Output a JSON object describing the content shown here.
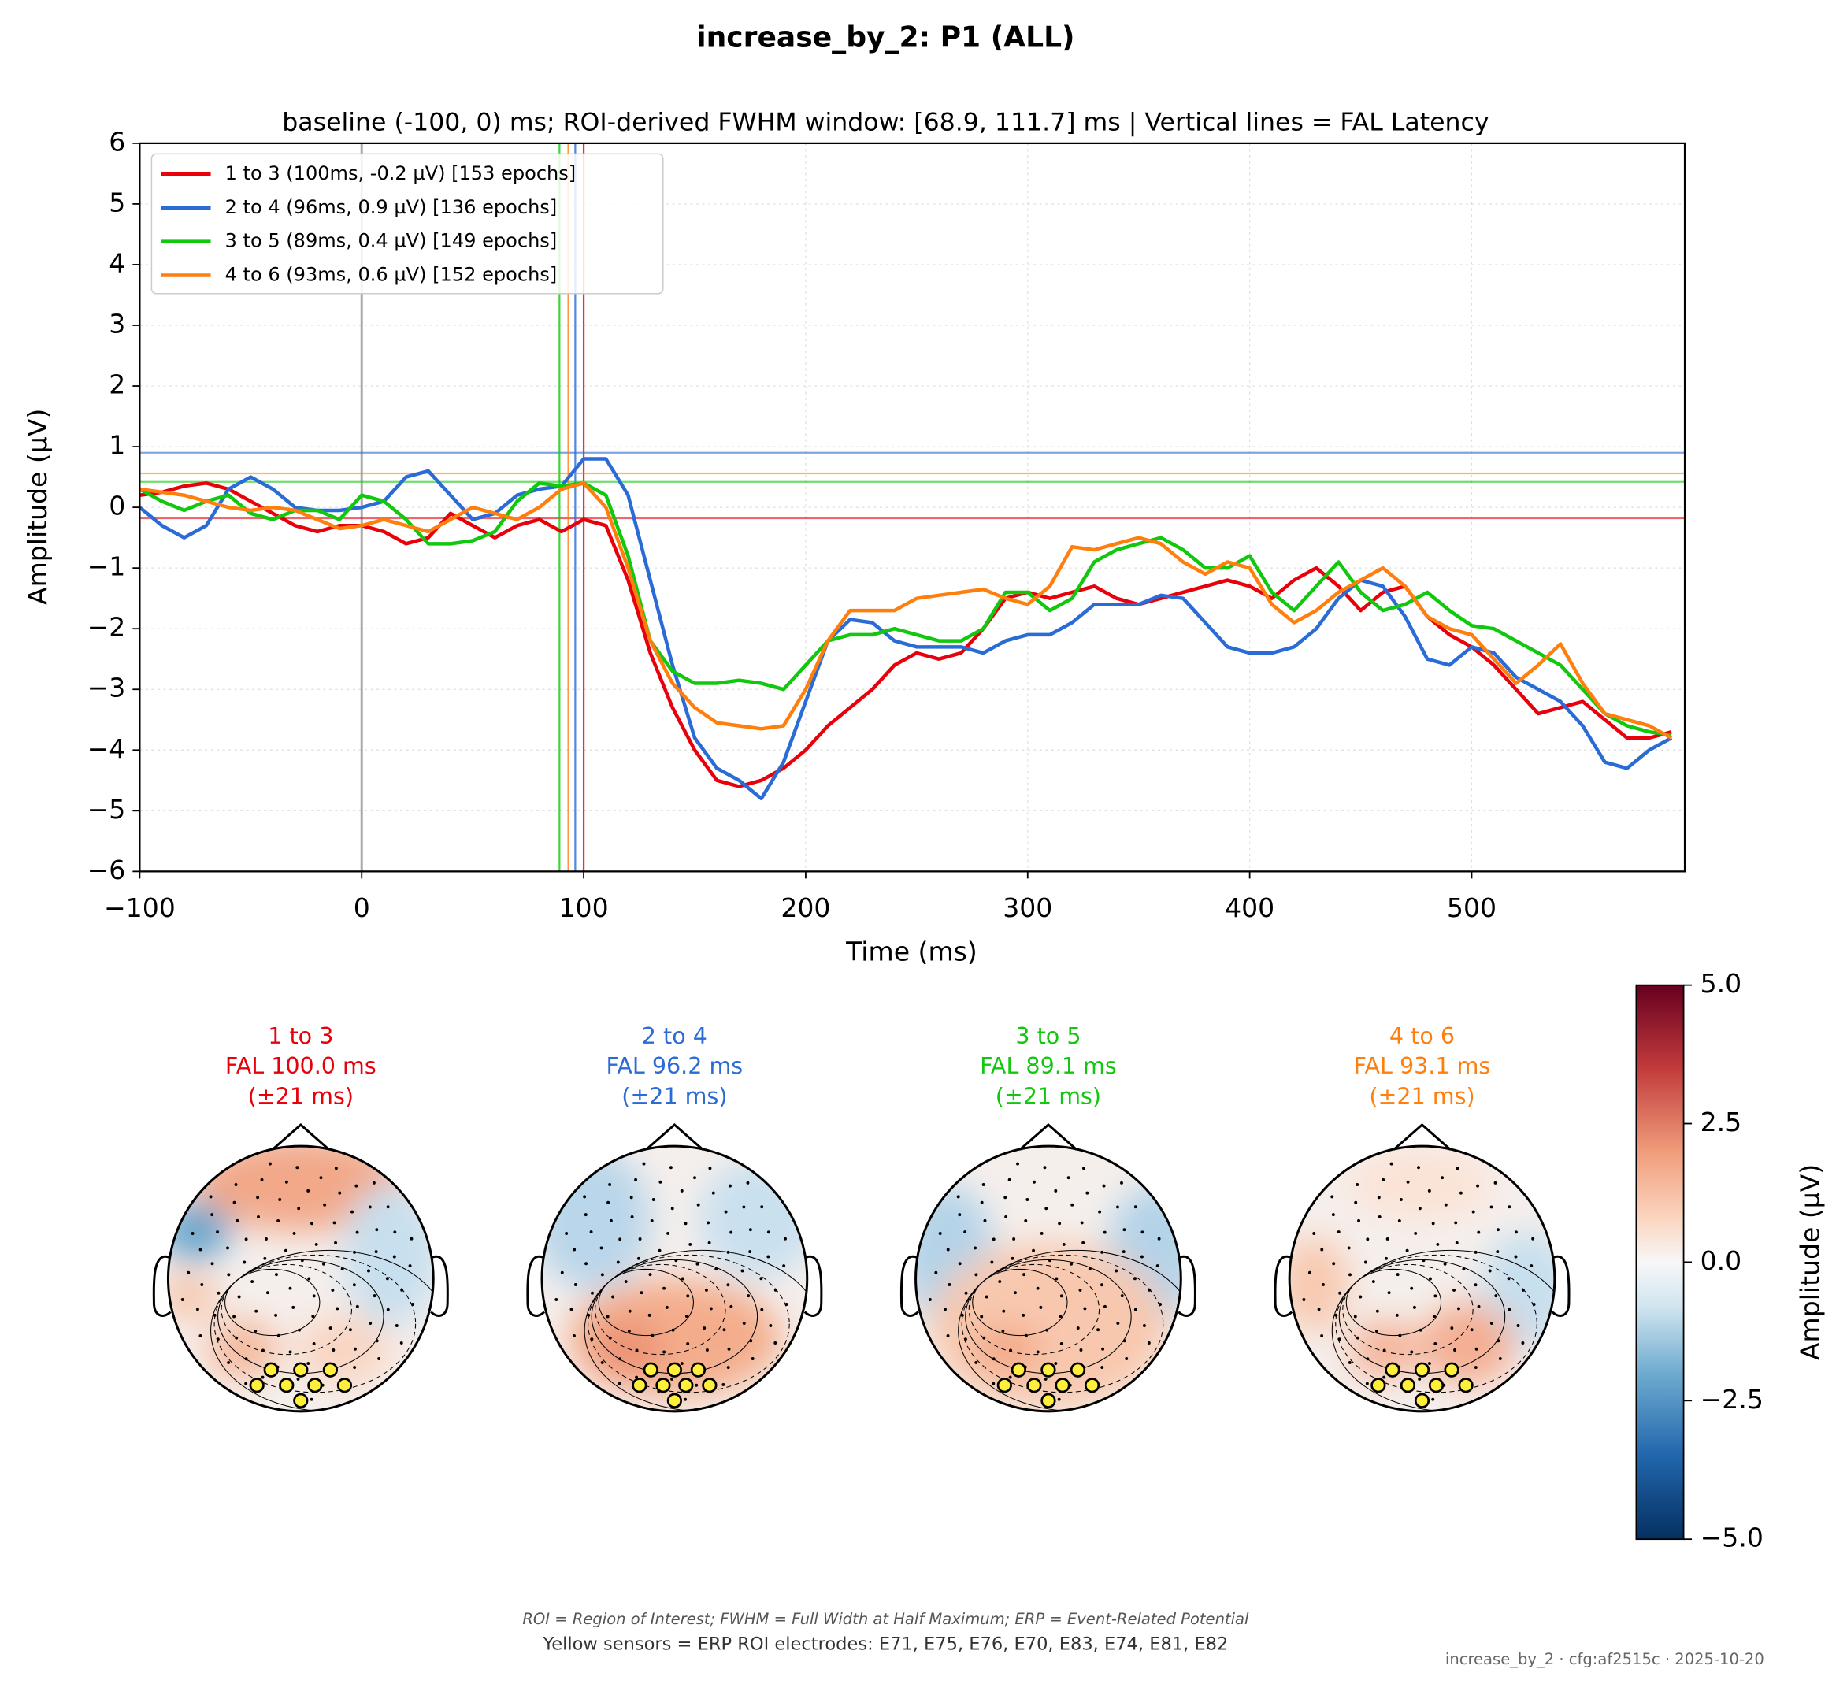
{
  "chart_data": {
    "type": "line",
    "title": "increase_by_2: P1 (ALL)",
    "subtitle": "baseline (-100, 0) ms; ROI-derived FWHM window: [68.9, 111.7] ms | Vertical lines = FAL Latency",
    "xlabel": "Time (ms)",
    "ylabel": "Amplitude (µV)",
    "xlim": [
      -100,
      596
    ],
    "ylim": [
      -6,
      6
    ],
    "xticks": [
      {
        "value": -100,
        "label": "−100"
      },
      0,
      100,
      200,
      300,
      400,
      500
    ],
    "yticks": [
      {
        "value": -6,
        "label": "−6"
      },
      {
        "value": -5,
        "label": "−5"
      },
      {
        "value": -4,
        "label": "−4"
      },
      {
        "value": -3,
        "label": "−3"
      },
      {
        "value": -2,
        "label": "−2"
      },
      {
        "value": -1,
        "label": "−1"
      },
      0,
      1,
      2,
      3,
      4,
      5,
      6
    ],
    "grid": true,
    "legend": "upper left",
    "onset_line": 0,
    "x": [
      -100,
      -90,
      -80,
      -70,
      -60,
      -50,
      -40,
      -30,
      -20,
      -10,
      0,
      10,
      20,
      30,
      40,
      50,
      60,
      70,
      80,
      90,
      100,
      110,
      120,
      130,
      140,
      150,
      160,
      170,
      180,
      190,
      200,
      210,
      220,
      230,
      240,
      250,
      260,
      270,
      280,
      290,
      300,
      310,
      320,
      330,
      340,
      350,
      360,
      370,
      380,
      390,
      400,
      410,
      420,
      430,
      440,
      450,
      460,
      470,
      480,
      490,
      500,
      510,
      520,
      530,
      540,
      550,
      560,
      570,
      580,
      590
    ],
    "series": [
      {
        "name": "1 to 3 (100ms, -0.2 µV) [153 epochs]",
        "color": "#e8000b",
        "fal_latency": 100,
        "fal_amplitude": -0.18,
        "values": [
          0.2,
          0.25,
          0.35,
          0.4,
          0.3,
          0.1,
          -0.1,
          -0.3,
          -0.4,
          -0.3,
          -0.3,
          -0.4,
          -0.6,
          -0.5,
          -0.1,
          -0.3,
          -0.5,
          -0.3,
          -0.2,
          -0.4,
          -0.2,
          -0.3,
          -1.2,
          -2.4,
          -3.3,
          -4.0,
          -4.5,
          -4.6,
          -4.5,
          -4.3,
          -4.0,
          -3.6,
          -3.3,
          -3.0,
          -2.6,
          -2.4,
          -2.5,
          -2.4,
          -2.0,
          -1.5,
          -1.4,
          -1.5,
          -1.4,
          -1.3,
          -1.5,
          -1.6,
          -1.5,
          -1.4,
          -1.3,
          -1.2,
          -1.3,
          -1.5,
          -1.2,
          -1.0,
          -1.3,
          -1.7,
          -1.4,
          -1.3,
          -1.8,
          -2.1,
          -2.3,
          -2.6,
          -3.0,
          -3.4,
          -3.3,
          -3.2,
          -3.5,
          -3.8,
          -3.8,
          -3.7
        ]
      },
      {
        "name": "2 to 4 (96ms, 0.9 µV) [136 epochs]",
        "color": "#2a6bd6",
        "fal_latency": 96.2,
        "fal_amplitude": 0.9,
        "values": [
          0.0,
          -0.3,
          -0.5,
          -0.3,
          0.3,
          0.5,
          0.3,
          0.0,
          -0.05,
          -0.05,
          0.0,
          0.1,
          0.5,
          0.6,
          0.2,
          -0.2,
          -0.1,
          0.2,
          0.3,
          0.35,
          0.8,
          0.8,
          0.2,
          -1.2,
          -2.6,
          -3.8,
          -4.3,
          -4.5,
          -4.8,
          -4.2,
          -3.2,
          -2.2,
          -1.85,
          -1.9,
          -2.2,
          -2.3,
          -2.3,
          -2.3,
          -2.4,
          -2.2,
          -2.1,
          -2.1,
          -1.9,
          -1.6,
          -1.6,
          -1.6,
          -1.45,
          -1.5,
          -1.9,
          -2.3,
          -2.4,
          -2.4,
          -2.3,
          -2.0,
          -1.5,
          -1.2,
          -1.3,
          -1.8,
          -2.5,
          -2.6,
          -2.3,
          -2.4,
          -2.8,
          -3.0,
          -3.2,
          -3.6,
          -4.2,
          -4.3,
          -4.0,
          -3.8
        ]
      },
      {
        "name": "3 to 5 (89ms, 0.4 µV) [149 epochs]",
        "color": "#12c80f",
        "fal_latency": 89.1,
        "fal_amplitude": 0.42,
        "values": [
          0.3,
          0.1,
          -0.05,
          0.1,
          0.2,
          -0.1,
          -0.2,
          -0.05,
          -0.05,
          -0.2,
          0.2,
          0.1,
          -0.2,
          -0.6,
          -0.6,
          -0.55,
          -0.4,
          0.1,
          0.4,
          0.35,
          0.4,
          0.2,
          -0.8,
          -2.2,
          -2.7,
          -2.9,
          -2.9,
          -2.85,
          -2.9,
          -3.0,
          -2.6,
          -2.2,
          -2.1,
          -2.1,
          -2.0,
          -2.1,
          -2.2,
          -2.2,
          -2.0,
          -1.4,
          -1.4,
          -1.7,
          -1.5,
          -0.9,
          -0.7,
          -0.6,
          -0.5,
          -0.7,
          -1.0,
          -1.0,
          -0.8,
          -1.4,
          -1.7,
          -1.3,
          -0.9,
          -1.4,
          -1.7,
          -1.6,
          -1.4,
          -1.7,
          -1.95,
          -2.0,
          -2.2,
          -2.4,
          -2.6,
          -3.0,
          -3.4,
          -3.6,
          -3.7,
          -3.75
        ]
      },
      {
        "name": "4 to 6 (93ms, 0.6 µV) [152 epochs]",
        "color": "#ff7f0e",
        "fal_latency": 93.1,
        "fal_amplitude": 0.56,
        "values": [
          0.3,
          0.25,
          0.2,
          0.1,
          0.0,
          -0.05,
          0.0,
          -0.05,
          -0.2,
          -0.35,
          -0.3,
          -0.2,
          -0.3,
          -0.4,
          -0.2,
          0.0,
          -0.1,
          -0.2,
          0.0,
          0.3,
          0.4,
          0.0,
          -1.0,
          -2.2,
          -2.9,
          -3.3,
          -3.55,
          -3.6,
          -3.65,
          -3.6,
          -3.0,
          -2.2,
          -1.7,
          -1.7,
          -1.7,
          -1.5,
          -1.45,
          -1.4,
          -1.35,
          -1.5,
          -1.6,
          -1.3,
          -0.65,
          -0.7,
          -0.6,
          -0.5,
          -0.6,
          -0.9,
          -1.1,
          -0.9,
          -1.0,
          -1.6,
          -1.9,
          -1.7,
          -1.4,
          -1.2,
          -1.0,
          -1.3,
          -1.8,
          -2.0,
          -2.1,
          -2.5,
          -2.9,
          -2.6,
          -2.25,
          -2.9,
          -3.4,
          -3.5,
          -3.6,
          -3.8
        ]
      }
    ],
    "topomaps": [
      {
        "lines": [
          "1 to 3",
          "FAL 100.0 ms",
          "(±21 ms)"
        ],
        "color": "#e8000b"
      },
      {
        "lines": [
          "2 to 4",
          "FAL 96.2 ms",
          "(±21 ms)"
        ],
        "color": "#2a6bd6"
      },
      {
        "lines": [
          "3 to 5",
          "FAL 89.1 ms",
          "(±21 ms)"
        ],
        "color": "#12c80f"
      },
      {
        "lines": [
          "4 to 6",
          "FAL 93.1 ms",
          "(±21 ms)"
        ],
        "color": "#ff7f0e"
      }
    ],
    "colorbar": {
      "label": "Amplitude (µV)",
      "ylim": [
        -5,
        5
      ],
      "yticks": [
        {
          "value": 5,
          "label": "5.0"
        },
        {
          "value": 2.5,
          "label": "2.5"
        },
        {
          "value": 0,
          "label": "0.0"
        },
        {
          "value": -2.5,
          "label": "−2.5"
        },
        {
          "value": -5,
          "label": "−5.0"
        }
      ]
    },
    "footnote": "ROI = Region of Interest; FWHM = Full Width at Half Maximum; ERP = Event-Related Potential",
    "sensor_note": "Yellow sensors = ERP ROI electrodes: E71, E75, E76, E70, E83, E74, E81, E82",
    "stamp": "increase_by_2 · cfg:af2515c · 2025-10-20"
  }
}
